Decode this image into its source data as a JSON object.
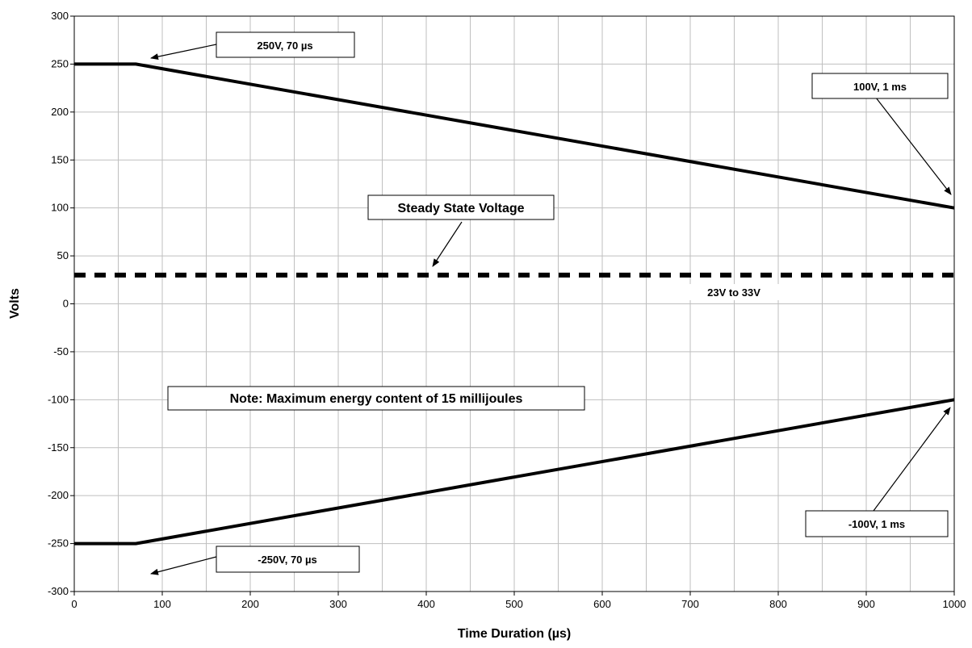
{
  "chart_data": {
    "type": "line",
    "xlabel": "Time Duration (µs)",
    "ylabel": "Volts",
    "xlim": [
      0,
      1000
    ],
    "ylim": [
      -300,
      300
    ],
    "xticks": [
      "0",
      "100",
      "200",
      "300",
      "400",
      "500",
      "600",
      "700",
      "800",
      "900",
      "1000"
    ],
    "yticks": [
      "300",
      "250",
      "200",
      "150",
      "100",
      "50",
      "0",
      "-50",
      "-100",
      "-150",
      "-200",
      "-250",
      "-300"
    ],
    "grid": true,
    "series": [
      {
        "points": [
          [
            0,
            250
          ],
          [
            70,
            250
          ],
          [
            1000,
            100
          ]
        ],
        "style": "solid"
      },
      {
        "points": [
          [
            0,
            -250
          ],
          [
            70,
            -250
          ],
          [
            1000,
            -100
          ]
        ],
        "style": "solid"
      },
      {
        "points": [
          [
            0,
            30
          ],
          [
            1000,
            30
          ]
        ],
        "style": "dashed"
      }
    ],
    "annotations": {
      "pos_start": {
        "text": "250V, 70 µs"
      },
      "pos_end": {
        "text": "100V, 1 ms"
      },
      "steady": {
        "text": "Steady State Voltage"
      },
      "steady_range": {
        "text": "23V to 33V"
      },
      "note": {
        "text": "Note: Maximum energy content of 15 millijoules"
      },
      "neg_start": {
        "text": "-250V, 70 µs"
      },
      "neg_end": {
        "text": "-100V, 1 ms"
      }
    },
    "colors": {
      "line": "#000000",
      "grid": "#bfbfbf",
      "background": "#ffffff"
    }
  }
}
